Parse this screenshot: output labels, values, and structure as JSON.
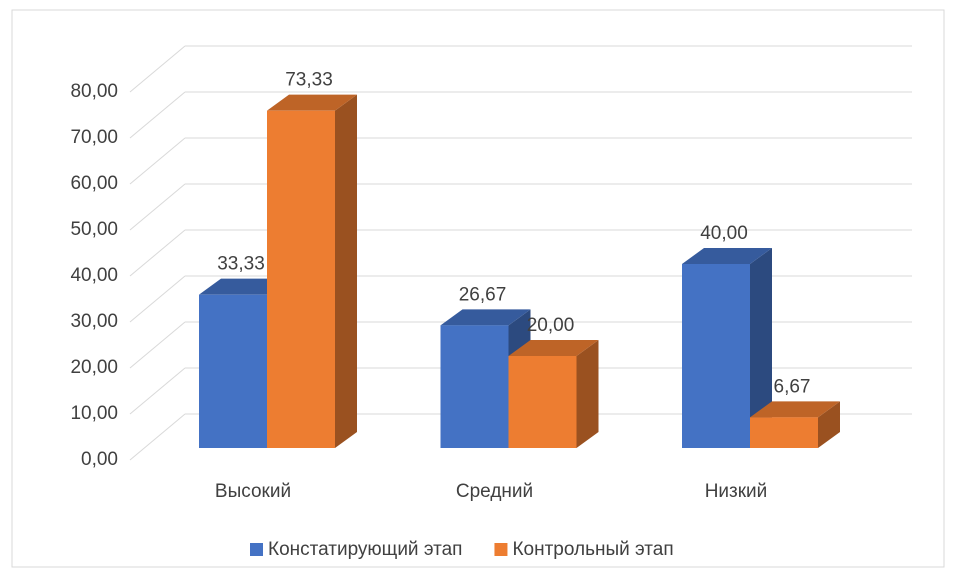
{
  "chart_data": {
    "type": "bar3d",
    "categories": [
      "Высокий",
      "Средний",
      "Низкий"
    ],
    "series": [
      {
        "name": "Констатирующий этап",
        "color": "#4472c4",
        "values": [
          33.33,
          26.67,
          40.0
        ],
        "value_labels": [
          "33,33",
          "26,67",
          "40,00"
        ]
      },
      {
        "name": "Контрольный этап",
        "color": "#ed7d31",
        "values": [
          73.33,
          20.0,
          6.67
        ],
        "value_labels": [
          "73,33",
          "20,00",
          "6,67"
        ]
      }
    ],
    "ylim": [
      0,
      80
    ],
    "yticks": [
      {
        "value": 0,
        "label": "0,00"
      },
      {
        "value": 10,
        "label": "10,00"
      },
      {
        "value": 20,
        "label": "20,00"
      },
      {
        "value": 30,
        "label": "30,00"
      },
      {
        "value": 40,
        "label": "40,00"
      },
      {
        "value": 50,
        "label": "50,00"
      },
      {
        "value": 60,
        "label": "60,00"
      },
      {
        "value": 70,
        "label": "70,00"
      },
      {
        "value": 80,
        "label": "80,00"
      }
    ],
    "grid": true,
    "legend": "bottom"
  }
}
